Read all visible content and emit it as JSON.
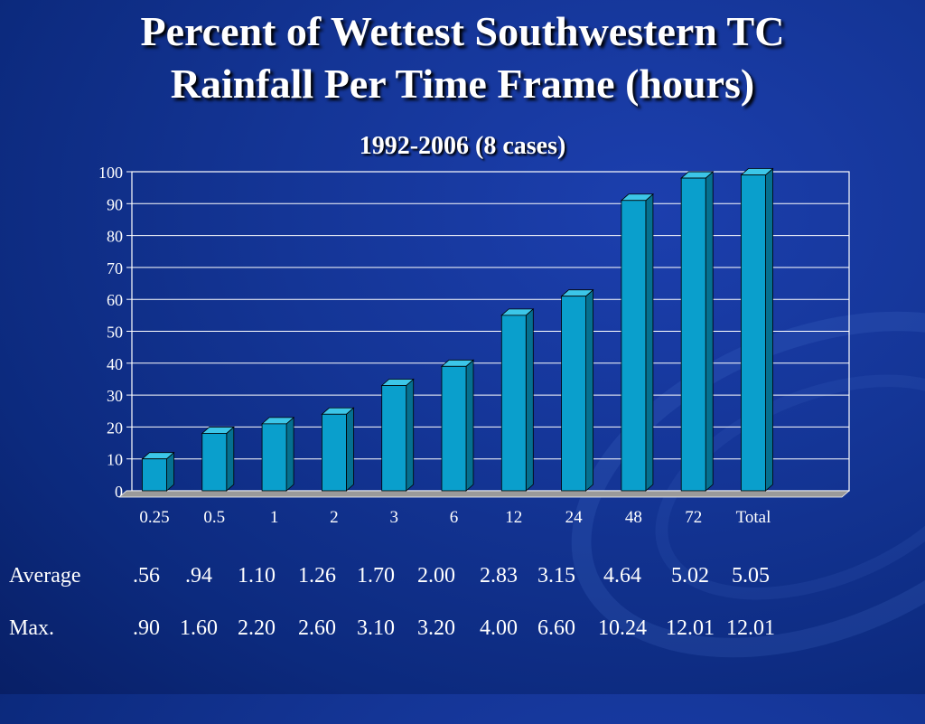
{
  "title_line1": "Percent of Wettest Southwestern TC",
  "title_line2": "Rainfall Per Time Frame (hours)",
  "subtitle": "1992-2006 (8 cases)",
  "colors": {
    "bar_front": "#0a9fcc",
    "bar_side": "#057090",
    "bar_top": "#3cc6e8",
    "floor": "#9a9a9a"
  },
  "chart_data": {
    "type": "bar",
    "categories": [
      "0.25",
      "0.5",
      "1",
      "2",
      "3",
      "6",
      "12",
      "24",
      "48",
      "72",
      "Total"
    ],
    "values": [
      10,
      18,
      21,
      24,
      33,
      39,
      55,
      61,
      91,
      98,
      99
    ],
    "ylim": [
      0,
      100
    ],
    "yticks": [
      0,
      10,
      20,
      30,
      40,
      50,
      60,
      70,
      80,
      90,
      100
    ],
    "grid": true,
    "title": "",
    "xlabel": "",
    "ylabel": ""
  },
  "table": {
    "average": {
      "label": "Average",
      "values": [
        ".56",
        ".94",
        "1.10",
        "1.26",
        "1.70",
        "2.00",
        "2.83",
        "3.15",
        "4.64",
        "5.02",
        "5.05"
      ]
    },
    "max": {
      "label": "Max.",
      "values": [
        ".90",
        "1.60",
        "2.20",
        "2.60",
        "3.10",
        "3.20",
        "4.00",
        "6.60",
        "10.24",
        "12.01",
        "12.01"
      ]
    }
  }
}
